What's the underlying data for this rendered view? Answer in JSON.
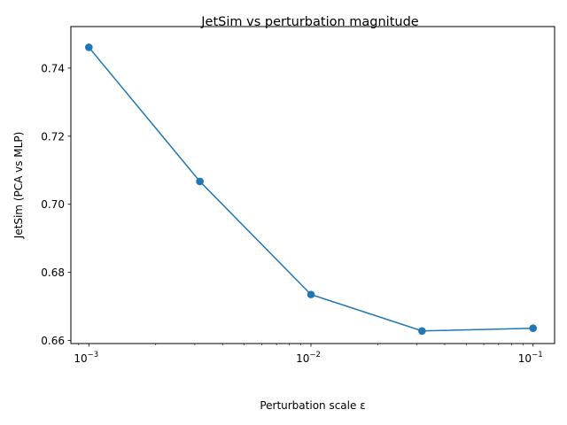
{
  "chart_data": {
    "type": "line",
    "title": "JetSim vs perturbation magnitude",
    "xlabel": "Perturbation scale ε",
    "ylabel": "JetSim (PCA vs MLP)",
    "xscale": "log",
    "x": [
      0.001,
      0.0031623,
      0.01,
      0.031623,
      0.1
    ],
    "series": [
      {
        "name": "JetSim",
        "values": [
          0.7461,
          0.7067,
          0.6735,
          0.6628,
          0.6636
        ],
        "color": "#1f77b4",
        "marker": "circle"
      }
    ],
    "xlim": [
      0.00083,
      0.125
    ],
    "ylim": [
      0.6591,
      0.7522
    ],
    "xticks": [
      {
        "base": "10",
        "exp": "−3",
        "value": 0.001
      },
      {
        "base": "10",
        "exp": "−2",
        "value": 0.01
      },
      {
        "base": "10",
        "exp": "−1",
        "value": 0.1
      }
    ],
    "yticks": [
      "0.66",
      "0.68",
      "0.70",
      "0.72",
      "0.74"
    ],
    "ytick_values": [
      0.66,
      0.68,
      0.7,
      0.72,
      0.74
    ],
    "grid": false,
    "legend": null
  }
}
